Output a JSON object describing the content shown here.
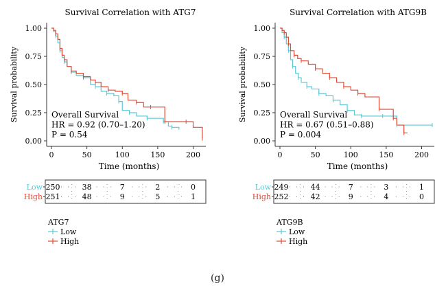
{
  "chart_data": [
    {
      "type": "line",
      "title": "Survival Correlation with ATG7",
      "xlabel": "Time (months)",
      "ylabel": "Survival probability",
      "xlim": [
        0,
        215
      ],
      "ylim": [
        0,
        1
      ],
      "xticks": [
        0,
        50,
        100,
        150,
        200
      ],
      "yticks": [
        "0.00",
        "0.25",
        "0.50",
        "0.75",
        "1.00"
      ],
      "grid": false,
      "annotation": [
        "Overall Survival",
        "HR = 0.92 (0.70–1.20)",
        "P = 0.54"
      ],
      "legend_title": "ATG7",
      "series": [
        {
          "name": "Low",
          "color": "#5bc8d6",
          "x": [
            0,
            3,
            6,
            9,
            12,
            15,
            18,
            22,
            28,
            35,
            45,
            55,
            62,
            70,
            78,
            88,
            95,
            100,
            110,
            120,
            135,
            150,
            158,
            165,
            170,
            180
          ],
          "y": [
            1.0,
            0.97,
            0.93,
            0.87,
            0.8,
            0.74,
            0.7,
            0.66,
            0.61,
            0.58,
            0.56,
            0.5,
            0.48,
            0.44,
            0.42,
            0.4,
            0.35,
            0.27,
            0.25,
            0.22,
            0.2,
            0.2,
            0.17,
            0.13,
            0.12,
            0.1
          ]
        },
        {
          "name": "High",
          "color": "#e24a33",
          "x": [
            0,
            3,
            6,
            9,
            12,
            15,
            18,
            22,
            28,
            35,
            45,
            55,
            62,
            70,
            80,
            90,
            100,
            108,
            120,
            130,
            140,
            150,
            160,
            175,
            190,
            200,
            213
          ],
          "y": [
            1.0,
            0.98,
            0.95,
            0.9,
            0.82,
            0.76,
            0.72,
            0.66,
            0.62,
            0.6,
            0.57,
            0.54,
            0.52,
            0.48,
            0.45,
            0.44,
            0.42,
            0.36,
            0.34,
            0.3,
            0.3,
            0.3,
            0.17,
            0.17,
            0.17,
            0.12,
            0.02
          ]
        }
      ],
      "risk_table": {
        "times": [
          0,
          50,
          100,
          150,
          200
        ],
        "rows": [
          {
            "label": "Low",
            "color": "#5bc8d6",
            "counts": [
              "250",
              "38",
              "7",
              "2",
              "0"
            ]
          },
          {
            "label": "High",
            "color": "#e24a33",
            "counts": [
              "251",
              "48",
              "9",
              "5",
              "1"
            ]
          }
        ]
      }
    },
    {
      "type": "line",
      "title": "Survival Correlation with ATG9B",
      "xlabel": "Time (months)",
      "ylabel": "Survival probability",
      "xlim": [
        0,
        215
      ],
      "ylim": [
        0,
        1
      ],
      "xticks": [
        0,
        50,
        100,
        150,
        200
      ],
      "yticks": [
        "0.00",
        "0.25",
        "0.50",
        "0.75",
        "1.00"
      ],
      "grid": false,
      "annotation": [
        "Overall Survival",
        "HR = 0.67 (0.51–0.88)",
        "P = 0.004"
      ],
      "legend_title": "ATG9B",
      "series": [
        {
          "name": "Low",
          "color": "#5bc8d6",
          "x": [
            0,
            3,
            6,
            9,
            12,
            15,
            18,
            22,
            26,
            30,
            38,
            45,
            55,
            65,
            75,
            85,
            95,
            105,
            115,
            130,
            145,
            160,
            165,
            200,
            215
          ],
          "y": [
            1.0,
            0.96,
            0.92,
            0.86,
            0.8,
            0.72,
            0.66,
            0.6,
            0.56,
            0.52,
            0.48,
            0.46,
            0.42,
            0.4,
            0.36,
            0.32,
            0.27,
            0.23,
            0.22,
            0.22,
            0.22,
            0.22,
            0.14,
            0.14,
            0.14
          ]
        },
        {
          "name": "High",
          "color": "#e24a33",
          "x": [
            0,
            3,
            6,
            9,
            12,
            15,
            20,
            25,
            30,
            40,
            50,
            60,
            70,
            80,
            90,
            100,
            110,
            120,
            140,
            155,
            160,
            165,
            175,
            180
          ],
          "y": [
            1.0,
            0.98,
            0.96,
            0.92,
            0.86,
            0.8,
            0.76,
            0.73,
            0.71,
            0.68,
            0.64,
            0.6,
            0.56,
            0.52,
            0.48,
            0.45,
            0.42,
            0.39,
            0.28,
            0.28,
            0.2,
            0.14,
            0.07,
            0.07
          ]
        }
      ],
      "risk_table": {
        "times": [
          0,
          50,
          100,
          150,
          200
        ],
        "rows": [
          {
            "label": "Low",
            "color": "#5bc8d6",
            "counts": [
              "249",
              "44",
              "7",
              "3",
              "1"
            ]
          },
          {
            "label": "High",
            "color": "#e24a33",
            "counts": [
              "252",
              "42",
              "9",
              "4",
              "0"
            ]
          }
        ]
      }
    }
  ],
  "figure_label": "(g)"
}
